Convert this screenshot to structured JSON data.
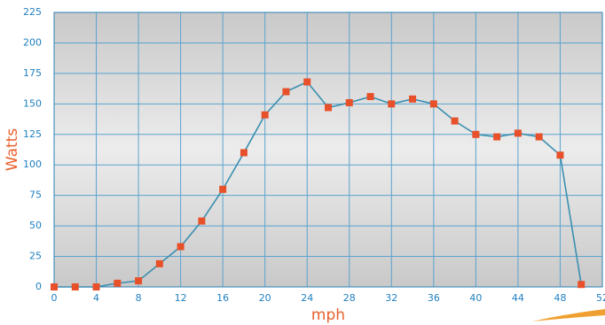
{
  "chart_data": {
    "type": "line",
    "x_label": "mph",
    "y_label": "Watts",
    "x": [
      0,
      2,
      4,
      6,
      8,
      10,
      12,
      14,
      16,
      18,
      20,
      22,
      24,
      26,
      28,
      30,
      32,
      34,
      36,
      38,
      40,
      42,
      44,
      46,
      48,
      50
    ],
    "series": [
      {
        "name": "Watts",
        "color": "#3a8fb0",
        "marker_color": "#e8502a",
        "values": [
          0,
          0,
          0,
          3,
          5,
          19,
          33,
          54,
          80,
          110,
          141,
          160,
          168,
          147,
          151,
          156,
          150,
          154,
          150,
          136,
          125,
          123,
          126,
          123,
          108,
          2
        ]
      }
    ],
    "xlim": [
      0,
      52
    ],
    "xticks": [
      0,
      4,
      8,
      12,
      16,
      20,
      24,
      28,
      32,
      36,
      40,
      44,
      48,
      52
    ],
    "ylim": [
      0,
      225
    ],
    "yticks": [
      0,
      25,
      50,
      75,
      100,
      125,
      150,
      175,
      200,
      225
    ],
    "grid": true
  }
}
